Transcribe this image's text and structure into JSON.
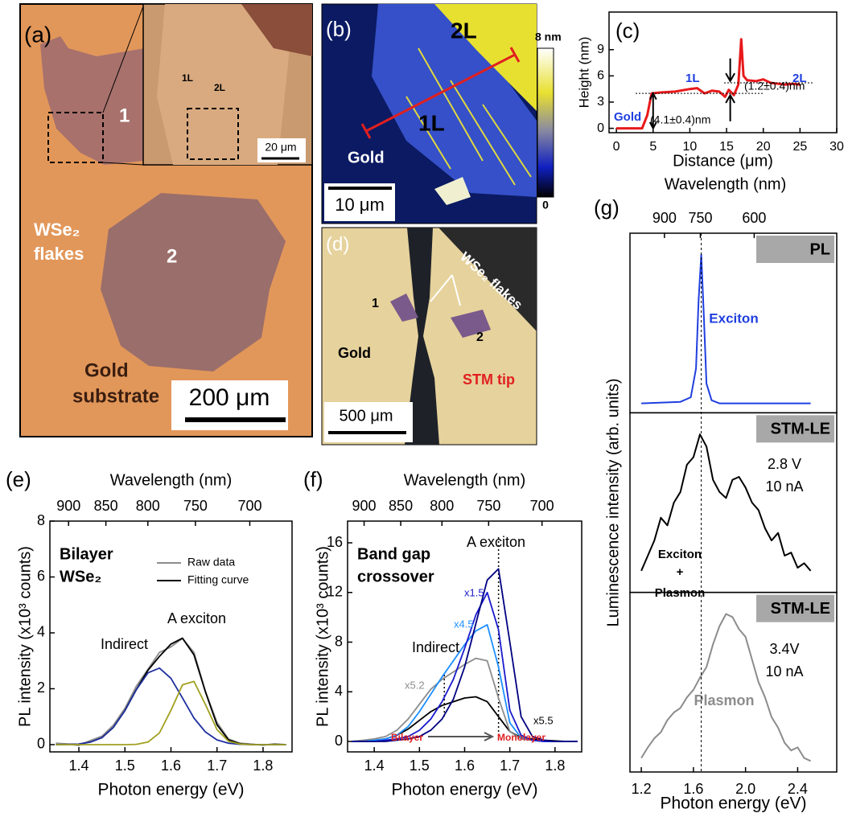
{
  "image_panels": {
    "a": {
      "panel": "(a)",
      "flake_1": "1",
      "flake_2": "2",
      "flakes_label": [
        "WSe₂",
        "flakes"
      ],
      "substrate_label": [
        "Gold",
        "substrate"
      ],
      "scale_bar": "200 μm",
      "inset": {
        "layer_1": "1L",
        "layer_2": "2L",
        "scale_bar": "20 μm"
      }
    },
    "b": {
      "panel": "(b)",
      "layer_2": "2L",
      "layer_1": "1L",
      "gold": "Gold",
      "scale_bar": "10 μm",
      "colorbar_max": "8 nm",
      "colorbar_min": "0"
    },
    "d": {
      "panel": "(d)",
      "flakes_label": "WSe₂ flakes",
      "flake_1": "1",
      "flake_2": "2",
      "gold": "Gold",
      "tip": "STM tip",
      "scale_bar": "500 μm"
    }
  },
  "chart_data": [
    {
      "type": "line",
      "panel": "(c)",
      "xlabel": "Distance (μm)",
      "ylabel": "Height (nm)",
      "x": [
        0,
        3.5,
        4.2,
        4.8,
        6,
        8,
        10,
        11,
        12,
        13,
        14,
        14.8,
        15.3,
        16,
        16.6,
        17,
        17.3,
        17.8,
        19,
        20,
        21,
        22,
        23,
        24,
        25
      ],
      "series": [
        {
          "color": "#e8191b",
          "values": [
            0,
            0,
            1.5,
            4,
            4.1,
            4.2,
            4.5,
            4.6,
            4,
            4.3,
            4.2,
            3.6,
            4.4,
            3.8,
            5,
            10.2,
            6,
            5.5,
            5.4,
            5.6,
            5.2,
            5.1,
            5,
            5.1,
            5
          ]
        }
      ],
      "xlim": [
        -1,
        30
      ],
      "ylim": [
        -0.5,
        13.3
      ],
      "xticks": [
        0,
        5,
        10,
        15,
        20,
        25,
        30
      ],
      "yticks": [
        0,
        3,
        6,
        9
      ],
      "annotations": [
        "Gold",
        "1L",
        "2L",
        "(4.1±0.4)nm",
        "(1.2±0.4)nm"
      ]
    },
    {
      "type": "line",
      "panel": "(e)",
      "xlabel": "Photon energy (eV)",
      "ylabel": "PL intensity (x10³ counts)",
      "x2label": "Wavelength (nm)",
      "x": [
        1.35,
        1.375,
        1.4,
        1.425,
        1.45,
        1.475,
        1.5,
        1.525,
        1.55,
        1.575,
        1.6,
        1.625,
        1.65,
        1.675,
        1.7,
        1.725,
        1.75,
        1.775,
        1.8,
        1.825,
        1.85
      ],
      "series": [
        {
          "name": "Raw data",
          "color": "#8c8c8c",
          "values": [
            0.05,
            0.02,
            -0.03,
            0.15,
            0.3,
            0.7,
            1.3,
            2.1,
            2.7,
            3.3,
            3.5,
            3.8,
            3.3,
            1.9,
            0.8,
            0.2,
            0.05,
            0.02,
            -0.02,
            0.03,
            0
          ]
        },
        {
          "name": "Fitting curve",
          "color": "#000000",
          "values": [
            0,
            0.01,
            0.02,
            0.09,
            0.25,
            0.62,
            1.22,
            1.98,
            2.66,
            3.16,
            3.6,
            3.81,
            3.21,
            1.88,
            0.71,
            0.17,
            0.03,
            0,
            0,
            0,
            0
          ]
        },
        {
          "color": "#1f2f9f",
          "values": [
            0,
            0.005,
            0.02,
            0.09,
            0.25,
            0.62,
            1.22,
            1.97,
            2.57,
            2.74,
            2.37,
            1.67,
            0.95,
            0.45,
            0.17,
            0.05,
            0.01,
            0,
            0,
            0,
            0
          ]
        },
        {
          "color": "#a0a020",
          "values": [
            0,
            0,
            0,
            0,
            0,
            0,
            0,
            0.01,
            0.09,
            0.42,
            1.23,
            2.14,
            2.26,
            1.43,
            0.54,
            0.12,
            0.02,
            0,
            0,
            0,
            0
          ]
        }
      ],
      "xlim": [
        1.337,
        1.863
      ],
      "ylim": [
        -0.26,
        8
      ],
      "xticks": [
        1.4,
        1.5,
        1.6,
        1.7,
        1.8
      ],
      "yticks": [
        0,
        2,
        4,
        6,
        8
      ],
      "x2ticks": [
        900,
        850,
        800,
        750,
        700
      ],
      "bold_label": [
        "Bilayer",
        "WSe₂"
      ],
      "annotations": [
        "Indirect",
        "A exciton"
      ]
    },
    {
      "type": "line",
      "panel": "(f)",
      "xlabel": "Photon energy (eV)",
      "ylabel": "PL intensity (x10³ counts)",
      "x2label": "Wavelength (nm)",
      "x": [
        1.35,
        1.375,
        1.4,
        1.425,
        1.45,
        1.475,
        1.5,
        1.525,
        1.55,
        1.575,
        1.6,
        1.625,
        1.65,
        1.675,
        1.7,
        1.725,
        1.75,
        1.775,
        1.8,
        1.825,
        1.85
      ],
      "series": [
        {
          "color": "#000000",
          "values": [
            0,
            0.05,
            0.1,
            0.2,
            0.5,
            1.0,
            1.7,
            2.4,
            2.9,
            3.2,
            3.5,
            3.6,
            3.2,
            2.0,
            0.8,
            0.3,
            0.2,
            0.1,
            0.05,
            0,
            0
          ]
        },
        {
          "color": "#8c8c8c",
          "values": [
            0,
            0.1,
            0.2,
            0.4,
            0.9,
            1.8,
            3.0,
            4.2,
            5.0,
            5.6,
            6.2,
            6.7,
            6.5,
            3.5,
            0.8,
            0.2,
            0.1,
            0,
            0,
            0,
            0
          ]
        },
        {
          "color": "#1e90ff",
          "values": [
            0,
            0,
            0.1,
            0.2,
            0.5,
            1.2,
            2.4,
            3.8,
            5.2,
            6.5,
            7.8,
            8.9,
            9.4,
            6.0,
            1.5,
            0.3,
            0.1,
            0,
            0,
            0,
            0
          ]
        },
        {
          "color": "#1a1acc",
          "values": [
            0,
            0,
            0,
            0.1,
            0.2,
            0.4,
            0.9,
            1.8,
            3.2,
            5.0,
            7.5,
            10.2,
            12.0,
            9.0,
            2.5,
            0.5,
            0.1,
            0,
            0,
            0,
            0
          ]
        },
        {
          "color": "#000080",
          "values": [
            0,
            0,
            0,
            0,
            0.1,
            0.2,
            0.4,
            0.9,
            1.8,
            3.4,
            6.0,
            9.5,
            13.0,
            13.9,
            8.0,
            2.0,
            0.4,
            0.1,
            0,
            0,
            0
          ]
        }
      ],
      "xlim": [
        1.341,
        1.859
      ],
      "ylim": [
        -0.84,
        17.75
      ],
      "xticks": [
        1.4,
        1.5,
        1.6,
        1.7,
        1.8
      ],
      "yticks": [
        0,
        4,
        8,
        12,
        16
      ],
      "x2ticks": [
        900,
        850,
        800,
        750,
        700
      ],
      "vlines": [
        1.675,
        1.555
      ],
      "bold_label": [
        "Band gap",
        "crossover"
      ],
      "annotations": [
        "A exciton",
        "Indirect",
        "x1.5",
        "x4.5",
        "x5.2",
        "x5.5",
        "Bilayer",
        "Monolayer"
      ]
    },
    {
      "type": "line",
      "panel": "(g)",
      "xlabel": "Photon energy (eV)",
      "ylabel": "Luminescence intensity (arb. units)",
      "x2label": "Wavelength (nm)",
      "xlim": [
        1.113,
        2.7
      ],
      "ylim": [
        0,
        1.1
      ],
      "xticks": [
        1.2,
        1.6,
        {
          "value": 2,
          "label": "2.0"
        },
        2.4
      ],
      "x2ticks": [
        900,
        750,
        600
      ],
      "vline": 1.66,
      "subplots": [
        {
          "label": "PL",
          "color": "#1f3fdf",
          "x": [
            1.2,
            1.5,
            1.58,
            1.62,
            1.64,
            1.66,
            1.68,
            1.7,
            1.74,
            1.8,
            2.0,
            2.5
          ],
          "values": [
            0.02,
            0.03,
            0.06,
            0.25,
            0.7,
            1.0,
            0.6,
            0.15,
            0.04,
            0.02,
            0.02,
            0.02
          ],
          "annotations": [
            "Exciton"
          ]
        },
        {
          "label": "STM-LE",
          "color": "#000000",
          "x": [
            1.2,
            1.25,
            1.3,
            1.35,
            1.4,
            1.45,
            1.5,
            1.55,
            1.6,
            1.65,
            1.7,
            1.75,
            1.8,
            1.85,
            1.9,
            1.95,
            2.0,
            2.05,
            2.1,
            2.15,
            2.2,
            2.25,
            2.3,
            2.35,
            2.4,
            2.45,
            2.5
          ],
          "values": [
            0.1,
            0.2,
            0.3,
            0.45,
            0.4,
            0.55,
            0.62,
            0.8,
            0.85,
            1.0,
            0.92,
            0.7,
            0.62,
            0.58,
            0.7,
            0.72,
            0.65,
            0.55,
            0.5,
            0.38,
            0.3,
            0.35,
            0.2,
            0.22,
            0.12,
            0.15,
            0.1
          ],
          "annotations": [
            "2.8 V",
            "10 nA",
            "Exciton",
            "+",
            "Plasmon"
          ]
        },
        {
          "label": "STM-LE",
          "color": "#8c8c8c",
          "x": [
            1.2,
            1.25,
            1.3,
            1.35,
            1.4,
            1.45,
            1.5,
            1.55,
            1.6,
            1.65,
            1.7,
            1.75,
            1.8,
            1.85,
            1.9,
            1.95,
            2.0,
            2.05,
            2.1,
            2.15,
            2.2,
            2.25,
            2.3,
            2.35,
            2.4,
            2.45,
            2.5
          ],
          "values": [
            0.05,
            0.12,
            0.18,
            0.22,
            0.3,
            0.35,
            0.38,
            0.45,
            0.5,
            0.58,
            0.65,
            0.8,
            0.92,
            1.0,
            0.98,
            0.9,
            0.85,
            0.7,
            0.55,
            0.45,
            0.32,
            0.25,
            0.15,
            0.1,
            0.12,
            0.05,
            0.03
          ],
          "annotations": [
            "3.4V",
            "10 nA",
            "Plasmon"
          ]
        }
      ]
    }
  ]
}
